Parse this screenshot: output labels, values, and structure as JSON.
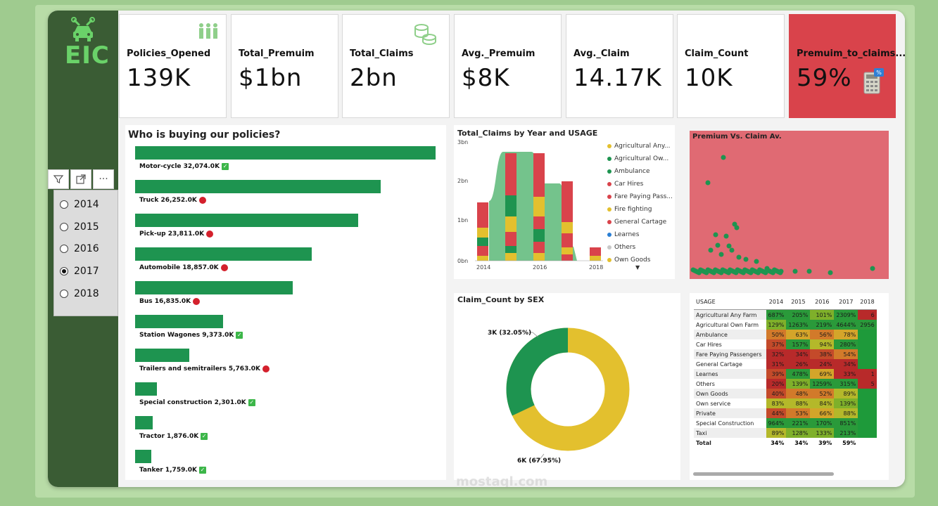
{
  "logo": {
    "text": "EIC"
  },
  "kpis": [
    {
      "label": "Policies_Opened",
      "value": "139K"
    },
    {
      "label": "Total_Premuim",
      "value": "$1bn"
    },
    {
      "label": "Total_Claims",
      "value": "2bn"
    },
    {
      "label": "Avg._Premuim",
      "value": "$8K"
    },
    {
      "label": "Avg._Claim",
      "value": "14.17K"
    },
    {
      "label": "Claim_Count",
      "value": "10K"
    },
    {
      "label": "Premuim_to_claims...",
      "value": "59%"
    }
  ],
  "year_slicer": {
    "options": [
      "2014",
      "2015",
      "2016",
      "2017",
      "2018"
    ],
    "selected": "2017"
  },
  "buyers": {
    "title": "Who is buying our policies?",
    "items": [
      {
        "label": "Motor-cycle 32,074.0K",
        "value": 32074,
        "status": "check"
      },
      {
        "label": "Truck 26,252.0K",
        "value": 26252,
        "status": "dot"
      },
      {
        "label": "Pick-up 23,811.0K",
        "value": 23811,
        "status": "dot"
      },
      {
        "label": "Automobile 18,857.0K",
        "value": 18857,
        "status": "dot"
      },
      {
        "label": "Bus 16,835.0K",
        "value": 16835,
        "status": "dot"
      },
      {
        "label": "Station Wagones 9,373.0K",
        "value": 9373,
        "status": "check"
      },
      {
        "label": "Trailers and semitrailers 5,763.0K",
        "value": 5763,
        "status": "dot"
      },
      {
        "label": "Special construction 2,301.0K",
        "value": 2301,
        "status": "check"
      },
      {
        "label": "Tractor 1,876.0K",
        "value": 1876,
        "status": "check"
      },
      {
        "label": "Tanker 1,759.0K",
        "value": 1759,
        "status": "check"
      }
    ]
  },
  "claims_by_year": {
    "title": "Total_Claims by Year and USAGE",
    "y_ticks": [
      "3bn",
      "2bn",
      "1bn",
      "0bn"
    ],
    "x_ticks": [
      "2014",
      "2016",
      "2018"
    ],
    "legend": [
      {
        "name": "Agricultural Any...",
        "color": "#e3c02e"
      },
      {
        "name": "Agricultural Ow...",
        "color": "#1e9450"
      },
      {
        "name": "Ambulance",
        "color": "#1e9450"
      },
      {
        "name": "Car Hires",
        "color": "#d9434b"
      },
      {
        "name": "Fare Paying Pass...",
        "color": "#d9434b"
      },
      {
        "name": "Fire fighting",
        "color": "#e3c02e"
      },
      {
        "name": "General Cartage",
        "color": "#d9434b"
      },
      {
        "name": "Learnes",
        "color": "#2a7fd4"
      },
      {
        "name": "Others",
        "color": "#c8c8c8"
      },
      {
        "name": "Own Goods",
        "color": "#e3c02e"
      }
    ]
  },
  "scatter": {
    "title": "Premium Vs. Claim Av."
  },
  "sex": {
    "title": "Claim_Count by SEX",
    "label_a": "3K (32.05%)",
    "label_b": "6K (67.95%)",
    "share_a": 32.05,
    "share_b": 67.95
  },
  "matrix": {
    "header": [
      "USAGE",
      "2014",
      "2015",
      "2016",
      "2017",
      "2018"
    ],
    "rows": [
      {
        "name": "Agricultural Any Farm",
        "cells": [
          "687%",
          "205%",
          "101%",
          "2309%",
          "6"
        ]
      },
      {
        "name": "Agricultural Own Farm",
        "cells": [
          "129%",
          "1263%",
          "219%",
          "4644%",
          "2956"
        ]
      },
      {
        "name": "Ambulance",
        "cells": [
          "50%",
          "63%",
          "56%",
          "78%",
          ""
        ]
      },
      {
        "name": "Car Hires",
        "cells": [
          "37%",
          "157%",
          "94%",
          "280%",
          ""
        ]
      },
      {
        "name": "Fare Paying Passengers",
        "cells": [
          "32%",
          "34%",
          "38%",
          "54%",
          ""
        ]
      },
      {
        "name": "General Cartage",
        "cells": [
          "31%",
          "26%",
          "24%",
          "34%",
          ""
        ]
      },
      {
        "name": "Learnes",
        "cells": [
          "39%",
          "478%",
          "69%",
          "33%",
          "1"
        ]
      },
      {
        "name": "Others",
        "cells": [
          "20%",
          "139%",
          "1259%",
          "315%",
          "5"
        ]
      },
      {
        "name": "Own Goods",
        "cells": [
          "40%",
          "48%",
          "52%",
          "89%",
          ""
        ]
      },
      {
        "name": "Own service",
        "cells": [
          "83%",
          "88%",
          "84%",
          "139%",
          ""
        ]
      },
      {
        "name": "Private",
        "cells": [
          "44%",
          "53%",
          "66%",
          "88%",
          ""
        ]
      },
      {
        "name": "Special Construction",
        "cells": [
          "964%",
          "221%",
          "170%",
          "851%",
          ""
        ]
      },
      {
        "name": "Taxi",
        "cells": [
          "89%",
          "128%",
          "133%",
          "213%",
          ""
        ]
      }
    ],
    "total": {
      "name": "Total",
      "cells": [
        "34%",
        "34%",
        "39%",
        "59%",
        ""
      ]
    }
  },
  "watermark": {
    "text": "mostaql.com"
  }
}
